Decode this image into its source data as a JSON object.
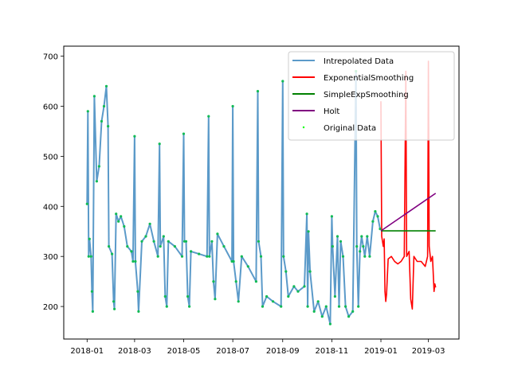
{
  "chart_data": {
    "type": "line",
    "title": "",
    "xlabel": "",
    "ylabel": "",
    "x_axis": {
      "type": "date",
      "range": [
        "2017-12-03",
        "2019-04-08"
      ],
      "ticks": [
        {
          "date": "2018-01-01",
          "label": "2018-01"
        },
        {
          "date": "2018-03-01",
          "label": "2018-03"
        },
        {
          "date": "2018-05-01",
          "label": "2018-05"
        },
        {
          "date": "2018-07-01",
          "label": "2018-07"
        },
        {
          "date": "2018-09-01",
          "label": "2018-09"
        },
        {
          "date": "2018-11-01",
          "label": "2018-11"
        },
        {
          "date": "2019-01-01",
          "label": "2019-01"
        },
        {
          "date": "2019-03-01",
          "label": "2019-03"
        }
      ]
    },
    "y_axis": {
      "range": [
        135,
        720
      ],
      "ticks": [
        {
          "value": 200,
          "label": "200"
        },
        {
          "value": 300,
          "label": "300"
        },
        {
          "value": 400,
          "label": "400"
        },
        {
          "value": 500,
          "label": "500"
        },
        {
          "value": 600,
          "label": "600"
        },
        {
          "value": 700,
          "label": "700"
        }
      ]
    },
    "grid": false,
    "legend": {
      "placement": "top-right",
      "entries": [
        {
          "label": "Intrepolated Data",
          "color": "#5b9ac9",
          "marker": "line"
        },
        {
          "label": "ExponentialSmoothing",
          "color": "#ff0000",
          "marker": "line"
        },
        {
          "label": "SimpleExpSmoothing",
          "color": "#008000",
          "marker": "line"
        },
        {
          "label": "Holt",
          "color": "#800080",
          "marker": "line"
        },
        {
          "label": "Original Data",
          "color": "#00ff00",
          "marker": "point"
        }
      ]
    },
    "series": [
      {
        "name": "Intrepolated Data",
        "color": "#5b9ac9",
        "points": [
          [
            "2018-01-01",
            405
          ],
          [
            "2018-01-02",
            590
          ],
          [
            "2018-01-03",
            300
          ],
          [
            "2018-01-04",
            335
          ],
          [
            "2018-01-06",
            300
          ],
          [
            "2018-01-07",
            230
          ],
          [
            "2018-01-08",
            190
          ],
          [
            "2018-01-10",
            620
          ],
          [
            "2018-01-13",
            450
          ],
          [
            "2018-01-16",
            480
          ],
          [
            "2018-01-19",
            570
          ],
          [
            "2018-01-22",
            600
          ],
          [
            "2018-01-25",
            640
          ],
          [
            "2018-01-27",
            560
          ],
          [
            "2018-01-28",
            320
          ],
          [
            "2018-02-01",
            305
          ],
          [
            "2018-02-03",
            210
          ],
          [
            "2018-02-04",
            195
          ],
          [
            "2018-02-06",
            385
          ],
          [
            "2018-02-09",
            370
          ],
          [
            "2018-02-12",
            380
          ],
          [
            "2018-02-16",
            360
          ],
          [
            "2018-02-20",
            320
          ],
          [
            "2018-02-25",
            310
          ],
          [
            "2018-02-27",
            290
          ],
          [
            "2018-03-01",
            540
          ],
          [
            "2018-03-02",
            290
          ],
          [
            "2018-03-05",
            230
          ],
          [
            "2018-03-06",
            190
          ],
          [
            "2018-03-10",
            330
          ],
          [
            "2018-03-15",
            340
          ],
          [
            "2018-03-20",
            365
          ],
          [
            "2018-03-25",
            330
          ],
          [
            "2018-03-30",
            300
          ],
          [
            "2018-04-01",
            525
          ],
          [
            "2018-04-02",
            320
          ],
          [
            "2018-04-06",
            340
          ],
          [
            "2018-04-08",
            220
          ],
          [
            "2018-04-10",
            200
          ],
          [
            "2018-04-12",
            330
          ],
          [
            "2018-04-20",
            320
          ],
          [
            "2018-04-29",
            300
          ],
          [
            "2018-05-01",
            545
          ],
          [
            "2018-05-02",
            330
          ],
          [
            "2018-05-04",
            330
          ],
          [
            "2018-05-06",
            220
          ],
          [
            "2018-05-08",
            200
          ],
          [
            "2018-05-10",
            310
          ],
          [
            "2018-05-20",
            305
          ],
          [
            "2018-05-30",
            300
          ],
          [
            "2018-06-01",
            580
          ],
          [
            "2018-06-02",
            300
          ],
          [
            "2018-06-05",
            330
          ],
          [
            "2018-06-07",
            250
          ],
          [
            "2018-06-09",
            215
          ],
          [
            "2018-06-12",
            345
          ],
          [
            "2018-06-20",
            320
          ],
          [
            "2018-06-30",
            290
          ],
          [
            "2018-07-01",
            600
          ],
          [
            "2018-07-02",
            290
          ],
          [
            "2018-07-05",
            250
          ],
          [
            "2018-07-08",
            210
          ],
          [
            "2018-07-12",
            300
          ],
          [
            "2018-07-20",
            280
          ],
          [
            "2018-07-30",
            250
          ],
          [
            "2018-08-01",
            630
          ],
          [
            "2018-08-02",
            330
          ],
          [
            "2018-08-05",
            300
          ],
          [
            "2018-08-07",
            200
          ],
          [
            "2018-08-12",
            220
          ],
          [
            "2018-08-20",
            210
          ],
          [
            "2018-08-30",
            200
          ],
          [
            "2018-09-01",
            650
          ],
          [
            "2018-09-02",
            300
          ],
          [
            "2018-09-05",
            270
          ],
          [
            "2018-09-08",
            220
          ],
          [
            "2018-09-15",
            240
          ],
          [
            "2018-09-20",
            230
          ],
          [
            "2018-09-28",
            240
          ],
          [
            "2018-10-01",
            385
          ],
          [
            "2018-10-02",
            200
          ],
          [
            "2018-10-03",
            350
          ],
          [
            "2018-10-05",
            270
          ],
          [
            "2018-10-10",
            190
          ],
          [
            "2018-10-15",
            210
          ],
          [
            "2018-10-20",
            180
          ],
          [
            "2018-10-25",
            200
          ],
          [
            "2018-10-30",
            165
          ],
          [
            "2018-11-01",
            380
          ],
          [
            "2018-11-02",
            320
          ],
          [
            "2018-11-05",
            220
          ],
          [
            "2018-11-08",
            340
          ],
          [
            "2018-11-10",
            200
          ],
          [
            "2018-11-12",
            330
          ],
          [
            "2018-11-15",
            300
          ],
          [
            "2018-11-18",
            200
          ],
          [
            "2018-11-22",
            180
          ],
          [
            "2018-11-27",
            190
          ],
          [
            "2018-12-01",
            670
          ],
          [
            "2018-12-02",
            320
          ],
          [
            "2018-12-04",
            200
          ],
          [
            "2018-12-06",
            310
          ],
          [
            "2018-12-08",
            340
          ],
          [
            "2018-12-10",
            320
          ],
          [
            "2018-12-12",
            300
          ],
          [
            "2018-12-15",
            340
          ],
          [
            "2018-12-18",
            300
          ],
          [
            "2018-12-22",
            370
          ],
          [
            "2018-12-25",
            390
          ],
          [
            "2018-12-28",
            380
          ],
          [
            "2018-12-31",
            355
          ]
        ]
      },
      {
        "name": "ExponentialSmoothing",
        "color": "#ff0000",
        "points": [
          [
            "2019-01-01",
            610
          ],
          [
            "2019-01-02",
            340
          ],
          [
            "2019-01-03",
            330
          ],
          [
            "2019-01-04",
            320
          ],
          [
            "2019-01-05",
            335
          ],
          [
            "2019-01-06",
            230
          ],
          [
            "2019-01-07",
            210
          ],
          [
            "2019-01-08",
            225
          ],
          [
            "2019-01-10",
            295
          ],
          [
            "2019-01-14",
            300
          ],
          [
            "2019-01-18",
            290
          ],
          [
            "2019-01-22",
            285
          ],
          [
            "2019-01-26",
            290
          ],
          [
            "2019-01-30",
            300
          ],
          [
            "2019-02-01",
            670
          ],
          [
            "2019-02-02",
            300
          ],
          [
            "2019-02-05",
            310
          ],
          [
            "2019-02-07",
            215
          ],
          [
            "2019-02-09",
            195
          ],
          [
            "2019-02-11",
            300
          ],
          [
            "2019-02-15",
            290
          ],
          [
            "2019-02-20",
            290
          ],
          [
            "2019-02-25",
            280
          ],
          [
            "2019-02-28",
            300
          ],
          [
            "2019-03-01",
            690
          ],
          [
            "2019-03-02",
            320
          ],
          [
            "2019-03-04",
            290
          ],
          [
            "2019-03-06",
            300
          ],
          [
            "2019-03-08",
            230
          ],
          [
            "2019-03-09",
            245
          ],
          [
            "2019-03-10",
            238
          ]
        ]
      },
      {
        "name": "SimpleExpSmoothing",
        "color": "#008000",
        "points": [
          [
            "2019-01-01",
            351
          ],
          [
            "2019-03-10",
            351
          ]
        ]
      },
      {
        "name": "Holt",
        "color": "#800080",
        "points": [
          [
            "2019-01-01",
            351
          ],
          [
            "2019-03-10",
            426
          ]
        ]
      },
      {
        "name": "Original Data",
        "color": "#00ff00",
        "marker": "point"
      }
    ]
  }
}
